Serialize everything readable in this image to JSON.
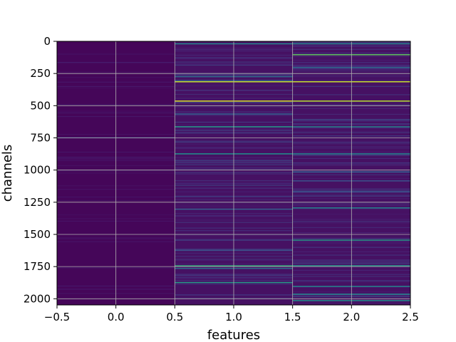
{
  "chart_data": {
    "type": "heatmap",
    "title": "",
    "xlabel": "features",
    "ylabel": "channels",
    "xlim": [
      -0.5,
      2.5
    ],
    "ylim": [
      2048,
      0
    ],
    "y_inverted": true,
    "grid": true,
    "colormap": "viridis",
    "columns": [
      0,
      1,
      2
    ],
    "n_rows": 2048,
    "xticks": [
      "−0.5",
      "0.0",
      "0.5",
      "1.0",
      "1.5",
      "2.0",
      "2.5"
    ],
    "xtick_values": [
      -0.5,
      0.0,
      0.5,
      1.0,
      1.5,
      2.0,
      2.5
    ],
    "yticks": [
      "0",
      "250",
      "500",
      "750",
      "1000",
      "1250",
      "1500",
      "1750",
      "2000"
    ],
    "ytick_values": [
      0,
      250,
      500,
      750,
      1000,
      1250,
      1500,
      1750,
      2000
    ],
    "column_base_level": [
      0.02,
      0.06,
      0.06
    ],
    "bright_rows": [
      {
        "row": 15,
        "column": 1,
        "value": 0.45
      },
      {
        "row": 15,
        "column": 2,
        "value": 0.45
      },
      {
        "row": 100,
        "column": 2,
        "value": 0.75
      },
      {
        "row": 200,
        "column": 2,
        "value": 0.35
      },
      {
        "row": 270,
        "column": 1,
        "value": 0.35
      },
      {
        "row": 300,
        "column": 1,
        "value": 0.3
      },
      {
        "row": 310,
        "column": 1,
        "value": 0.92
      },
      {
        "row": 310,
        "column": 2,
        "value": 0.92
      },
      {
        "row": 460,
        "column": 1,
        "value": 0.95
      },
      {
        "row": 460,
        "column": 2,
        "value": 0.9
      },
      {
        "row": 560,
        "column": 1,
        "value": 0.3
      },
      {
        "row": 660,
        "column": 1,
        "value": 0.55
      },
      {
        "row": 660,
        "column": 2,
        "value": 0.45
      },
      {
        "row": 745,
        "column": 0,
        "value": 0.2
      },
      {
        "row": 870,
        "column": 1,
        "value": 0.5
      },
      {
        "row": 870,
        "column": 2,
        "value": 0.45
      },
      {
        "row": 1010,
        "column": 2,
        "value": 0.3
      },
      {
        "row": 1080,
        "column": 2,
        "value": 0.25
      },
      {
        "row": 1160,
        "column": 2,
        "value": 0.25
      },
      {
        "row": 1290,
        "column": 2,
        "value": 0.45
      },
      {
        "row": 1300,
        "column": 1,
        "value": 0.3
      },
      {
        "row": 1540,
        "column": 2,
        "value": 0.55
      },
      {
        "row": 1620,
        "column": 1,
        "value": 0.25
      },
      {
        "row": 1740,
        "column": 1,
        "value": 0.65
      },
      {
        "row": 1740,
        "column": 2,
        "value": 0.55
      },
      {
        "row": 1760,
        "column": 1,
        "value": 0.35
      },
      {
        "row": 1870,
        "column": 1,
        "value": 0.55
      },
      {
        "row": 1900,
        "column": 2,
        "value": 0.45
      },
      {
        "row": 1960,
        "column": 2,
        "value": 0.45
      },
      {
        "row": 2010,
        "column": 2,
        "value": 0.5
      }
    ]
  }
}
